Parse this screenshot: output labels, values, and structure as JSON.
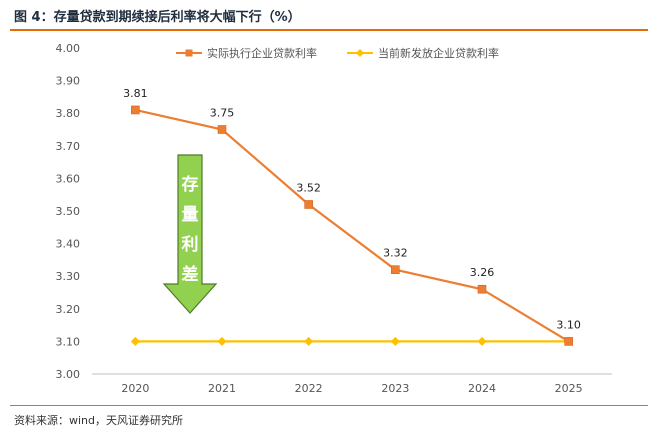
{
  "header": {
    "title": "图 4：存量贷款到期续接后利率将大幅下行（%）"
  },
  "footer": {
    "source": "资料来源：wind，天风证券研究所"
  },
  "annotation": {
    "arrow_text": [
      "存",
      "量",
      "利",
      "差"
    ],
    "arrow_color": "#92d050",
    "arrow_border": "#4f7a28"
  },
  "chart_data": {
    "type": "line",
    "categories": [
      "2020",
      "2021",
      "2022",
      "2023",
      "2024",
      "2025"
    ],
    "series": [
      {
        "name": "实际执行企业贷款利率",
        "values": [
          3.81,
          3.75,
          3.52,
          3.32,
          3.26,
          3.1
        ],
        "color": "#ed7d31",
        "marker": "square",
        "labels": [
          "3.81",
          "3.75",
          "3.52",
          "3.32",
          "3.26",
          "3.10"
        ]
      },
      {
        "name": "当前新发放企业贷款利率",
        "values": [
          3.1,
          3.1,
          3.1,
          3.1,
          3.1,
          3.1
        ],
        "color": "#ffc000",
        "marker": "diamond"
      }
    ],
    "ylim": [
      3.0,
      4.0
    ],
    "yticks": [
      "3.00",
      "3.10",
      "3.20",
      "3.30",
      "3.40",
      "3.50",
      "3.60",
      "3.70",
      "3.80",
      "3.90",
      "4.00"
    ],
    "legend_position": "top",
    "grid": false
  }
}
